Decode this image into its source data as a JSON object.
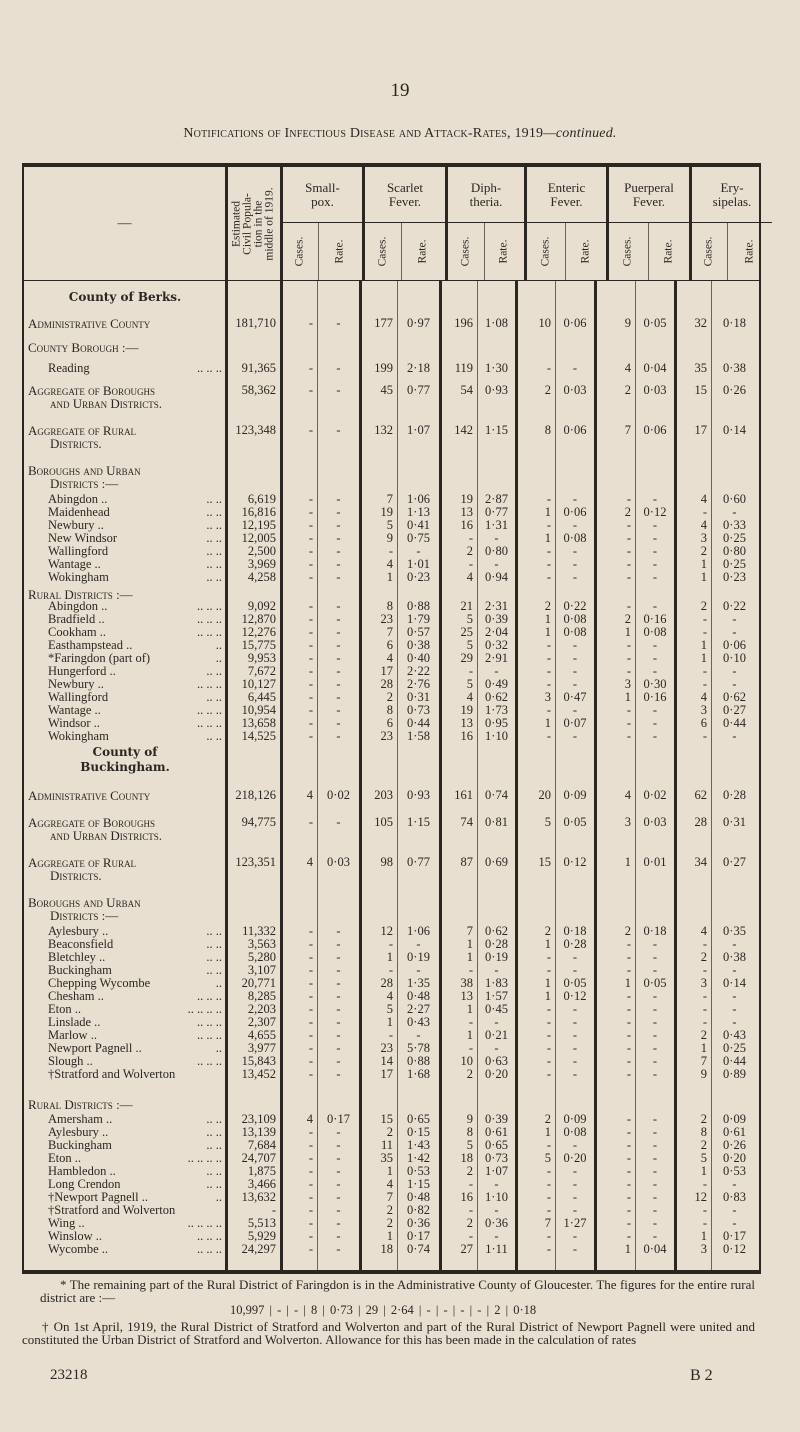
{
  "page_number": "19",
  "title_main": "Notifications of Infectious Disease and Attack-Rates, 1919",
  "title_suffix": "—continued.",
  "header": {
    "name_col": "—",
    "population": [
      "Estimated",
      "Civil Popula-",
      "tion in the",
      "middle of 1919."
    ],
    "diseases": [
      {
        "name": "Small-",
        "name2": "pox."
      },
      {
        "name": "Scarlet",
        "name2": "Fever."
      },
      {
        "name": "Diph-",
        "name2": "theria."
      },
      {
        "name": "Enteric",
        "name2": "Fever."
      },
      {
        "name": "Puerperal",
        "name2": "Fever."
      },
      {
        "name": "Ery-",
        "name2": "sipelas."
      }
    ],
    "cases": "Cases.",
    "rate": "Rate."
  },
  "rows": [
    {
      "type": "county",
      "label": "County of Berks."
    },
    {
      "type": "total",
      "label": "Administrative County",
      "v": [
        "181,710",
        "-",
        "-",
        "177",
        "0·97",
        "196",
        "1·08",
        "10",
        "0·06",
        "9",
        "0·05",
        "32",
        "0·18"
      ]
    },
    {
      "type": "section",
      "label": "County Borough :—"
    },
    {
      "type": "item",
      "label": "Reading",
      "dots": ".. .. ..",
      "v": [
        "91,365",
        "-",
        "-",
        "199",
        "2·18",
        "119",
        "1·30",
        "-",
        "-",
        "4",
        "0·04",
        "35",
        "0·38"
      ]
    },
    {
      "type": "agg",
      "label": "Aggregate of Boroughs",
      "label2": "and Urban Districts.",
      "v": [
        "58,362",
        "-",
        "-",
        "45",
        "0·77",
        "54",
        "0·93",
        "2",
        "0·03",
        "2",
        "0·03",
        "15",
        "0·26"
      ]
    },
    {
      "type": "agg",
      "label": "Aggregate of Rural",
      "label2": "Districts.",
      "v": [
        "123,348",
        "-",
        "-",
        "132",
        "1·07",
        "142",
        "1·15",
        "8",
        "0·06",
        "7",
        "0·06",
        "17",
        "0·14"
      ]
    },
    {
      "type": "section2",
      "label": "Boroughs and Urban",
      "label2": "Districts :—"
    },
    {
      "type": "item",
      "label": "Abingdon ..",
      "dots": ".. ..",
      "v": [
        "6,619",
        "-",
        "-",
        "7",
        "1·06",
        "19",
        "2·87",
        "-",
        "-",
        "-",
        "-",
        "4",
        "0·60"
      ]
    },
    {
      "type": "item",
      "label": "Maidenhead",
      "dots": ".. ..",
      "v": [
        "16,816",
        "-",
        "-",
        "19",
        "1·13",
        "13",
        "0·77",
        "1",
        "0·06",
        "2",
        "0·12",
        "-",
        "-"
      ]
    },
    {
      "type": "item",
      "label": "Newbury ..",
      "dots": ".. ..",
      "v": [
        "12,195",
        "-",
        "-",
        "5",
        "0·41",
        "16",
        "1·31",
        "-",
        "-",
        "-",
        "-",
        "4",
        "0·33"
      ]
    },
    {
      "type": "item",
      "label": "New Windsor",
      "dots": ".. ..",
      "v": [
        "12,005",
        "-",
        "-",
        "9",
        "0·75",
        "-",
        "-",
        "1",
        "0·08",
        "-",
        "-",
        "3",
        "0·25"
      ]
    },
    {
      "type": "item",
      "label": "Wallingford",
      "dots": ".. ..",
      "v": [
        "2,500",
        "-",
        "-",
        "-",
        "-",
        "2",
        "0·80",
        "-",
        "-",
        "-",
        "-",
        "2",
        "0·80"
      ]
    },
    {
      "type": "item",
      "label": "Wantage ..",
      "dots": ".. ..",
      "v": [
        "3,969",
        "-",
        "-",
        "4",
        "1·01",
        "-",
        "-",
        "-",
        "-",
        "-",
        "-",
        "1",
        "0·25"
      ]
    },
    {
      "type": "item",
      "label": "Wokingham",
      "dots": ".. ..",
      "v": [
        "4,258",
        "-",
        "-",
        "1",
        "0·23",
        "4",
        "0·94",
        "-",
        "-",
        "-",
        "-",
        "1",
        "0·23"
      ]
    },
    {
      "type": "section",
      "label": "Rural Districts :—"
    },
    {
      "type": "item",
      "label": "Abingdon ..",
      "dots": ".. .. ..",
      "v": [
        "9,092",
        "-",
        "-",
        "8",
        "0·88",
        "21",
        "2·31",
        "2",
        "0·22",
        "-",
        "-",
        "2",
        "0·22"
      ]
    },
    {
      "type": "item",
      "label": "Bradfield ..",
      "dots": ".. .. ..",
      "v": [
        "12,870",
        "-",
        "-",
        "23",
        "1·79",
        "5",
        "0·39",
        "1",
        "0·08",
        "2",
        "0·16",
        "-",
        "-"
      ]
    },
    {
      "type": "item",
      "label": "Cookham ..",
      "dots": ".. .. ..",
      "v": [
        "12,276",
        "-",
        "-",
        "7",
        "0·57",
        "25",
        "2·04",
        "1",
        "0·08",
        "1",
        "0·08",
        "-",
        "-"
      ]
    },
    {
      "type": "item",
      "label": "Easthampstead ..",
      "dots": "..",
      "v": [
        "15,775",
        "-",
        "-",
        "6",
        "0·38",
        "5",
        "0·32",
        "-",
        "-",
        "-",
        "-",
        "1",
        "0·06"
      ]
    },
    {
      "type": "item",
      "label": "*Faringdon (part of)",
      "dots": "..",
      "v": [
        "9,953",
        "-",
        "-",
        "4",
        "0·40",
        "29",
        "2·91",
        "-",
        "-",
        "-",
        "-",
        "1",
        "0·10"
      ]
    },
    {
      "type": "item",
      "label": "Hungerford ..",
      "dots": ".. ..",
      "v": [
        "7,672",
        "-",
        "-",
        "17",
        "2·22",
        "-",
        "-",
        "-",
        "-",
        "-",
        "-",
        "-",
        "-"
      ]
    },
    {
      "type": "item",
      "label": "Newbury ..",
      "dots": ".. .. ..",
      "v": [
        "10,127",
        "-",
        "-",
        "28",
        "2·76",
        "5",
        "0·49",
        "-",
        "-",
        "3",
        "0·30",
        "-",
        "-"
      ]
    },
    {
      "type": "item",
      "label": "Wallingford",
      "dots": ".. ..",
      "v": [
        "6,445",
        "-",
        "-",
        "2",
        "0·31",
        "4",
        "0·62",
        "3",
        "0·47",
        "1",
        "0·16",
        "4",
        "0·62"
      ]
    },
    {
      "type": "item",
      "label": "Wantage ..",
      "dots": ".. .. ..",
      "v": [
        "10,954",
        "-",
        "-",
        "8",
        "0·73",
        "19",
        "1·73",
        "-",
        "-",
        "-",
        "-",
        "3",
        "0·27"
      ]
    },
    {
      "type": "item",
      "label": "Windsor ..",
      "dots": ".. .. ..",
      "v": [
        "13,658",
        "-",
        "-",
        "6",
        "0·44",
        "13",
        "0·95",
        "1",
        "0·07",
        "-",
        "-",
        "6",
        "0·44"
      ]
    },
    {
      "type": "item",
      "label": "Wokingham",
      "dots": ".. ..",
      "v": [
        "14,525",
        "-",
        "-",
        "23",
        "1·58",
        "16",
        "1·10",
        "-",
        "-",
        "-",
        "-",
        "-",
        "-"
      ]
    },
    {
      "type": "county2",
      "label": "County of",
      "label2": "Buckingham."
    },
    {
      "type": "total",
      "label": "Administrative County",
      "v": [
        "218,126",
        "4",
        "0·02",
        "203",
        "0·93",
        "161",
        "0·74",
        "20",
        "0·09",
        "4",
        "0·02",
        "62",
        "0·28"
      ]
    },
    {
      "type": "agg",
      "label": "Aggregate of Boroughs",
      "label2": "and Urban Districts.",
      "v": [
        "94,775",
        "-",
        "-",
        "105",
        "1·15",
        "74",
        "0·81",
        "5",
        "0·05",
        "3",
        "0·03",
        "28",
        "0·31"
      ]
    },
    {
      "type": "agg",
      "label": "Aggregate of Rural",
      "label2": "Districts.",
      "v": [
        "123,351",
        "4",
        "0·03",
        "98",
        "0·77",
        "87",
        "0·69",
        "15",
        "0·12",
        "1",
        "0·01",
        "34",
        "0·27"
      ]
    },
    {
      "type": "section2",
      "label": "Boroughs and Urban",
      "label2": "Districts :—"
    },
    {
      "type": "item",
      "label": "Aylesbury ..",
      "dots": ".. ..",
      "v": [
        "11,332",
        "-",
        "-",
        "12",
        "1·06",
        "7",
        "0·62",
        "2",
        "0·18",
        "2",
        "0·18",
        "4",
        "0·35"
      ]
    },
    {
      "type": "item",
      "label": "Beaconsfield",
      "dots": ".. ..",
      "v": [
        "3,563",
        "-",
        "-",
        "-",
        "-",
        "1",
        "0·28",
        "1",
        "0·28",
        "-",
        "-",
        "-",
        "-"
      ]
    },
    {
      "type": "item",
      "label": "Bletchley ..",
      "dots": ".. ..",
      "v": [
        "5,280",
        "-",
        "-",
        "1",
        "0·19",
        "1",
        "0·19",
        "-",
        "-",
        "-",
        "-",
        "2",
        "0·38"
      ]
    },
    {
      "type": "item",
      "label": "Buckingham",
      "dots": ".. ..",
      "v": [
        "3,107",
        "-",
        "-",
        "-",
        "-",
        "-",
        "-",
        "-",
        "-",
        "-",
        "-",
        "-",
        "-"
      ]
    },
    {
      "type": "item",
      "label": "Chepping Wycombe",
      "dots": "..",
      "v": [
        "20,771",
        "-",
        "-",
        "28",
        "1·35",
        "38",
        "1·83",
        "1",
        "0·05",
        "1",
        "0·05",
        "3",
        "0·14"
      ]
    },
    {
      "type": "item",
      "label": "Chesham ..",
      "dots": ".. .. ..",
      "v": [
        "8,285",
        "-",
        "-",
        "4",
        "0·48",
        "13",
        "1·57",
        "1",
        "0·12",
        "-",
        "-",
        "-",
        "-"
      ]
    },
    {
      "type": "item",
      "label": "Eton ..",
      "dots": ".. .. .. ..",
      "v": [
        "2,203",
        "-",
        "-",
        "5",
        "2·27",
        "1",
        "0·45",
        "-",
        "-",
        "-",
        "-",
        "-",
        "-"
      ]
    },
    {
      "type": "item",
      "label": "Linslade ..",
      "dots": ".. .. ..",
      "v": [
        "2,307",
        "-",
        "-",
        "1",
        "0·43",
        "-",
        "-",
        "-",
        "-",
        "-",
        "-",
        "-",
        "-"
      ]
    },
    {
      "type": "item",
      "label": "Marlow ..",
      "dots": ".. .. ..",
      "v": [
        "4,655",
        "-",
        "-",
        "-",
        "-",
        "1",
        "0·21",
        "-",
        "-",
        "-",
        "-",
        "2",
        "0·43"
      ]
    },
    {
      "type": "item",
      "label": "Newport Pagnell ..",
      "dots": "..",
      "v": [
        "3,977",
        "-",
        "-",
        "23",
        "5·78",
        "-",
        "-",
        "-",
        "-",
        "-",
        "-",
        "1",
        "0·25"
      ]
    },
    {
      "type": "item",
      "label": "Slough ..",
      "dots": ".. .. ..",
      "v": [
        "15,843",
        "-",
        "-",
        "14",
        "0·88",
        "10",
        "0·63",
        "-",
        "-",
        "-",
        "-",
        "7",
        "0·44"
      ]
    },
    {
      "type": "item",
      "label": "†Stratford and Wolverton",
      "dots": "",
      "v": [
        "13,452",
        "-",
        "-",
        "17",
        "1·68",
        "2",
        "0·20",
        "-",
        "-",
        "-",
        "-",
        "9",
        "0·89"
      ]
    },
    {
      "type": "section",
      "label": "Rural Districts :—"
    },
    {
      "type": "item",
      "label": "Amersham ..",
      "dots": ".. ..",
      "v": [
        "23,109",
        "4",
        "0·17",
        "15",
        "0·65",
        "9",
        "0·39",
        "2",
        "0·09",
        "-",
        "-",
        "2",
        "0·09"
      ]
    },
    {
      "type": "item",
      "label": "Aylesbury ..",
      "dots": ".. ..",
      "v": [
        "13,139",
        "-",
        "-",
        "2",
        "0·15",
        "8",
        "0·61",
        "1",
        "0·08",
        "-",
        "-",
        "8",
        "0·61"
      ]
    },
    {
      "type": "item",
      "label": "Buckingham",
      "dots": ".. ..",
      "v": [
        "7,684",
        "-",
        "-",
        "11",
        "1·43",
        "5",
        "0·65",
        "-",
        "-",
        "-",
        "-",
        "2",
        "0·26"
      ]
    },
    {
      "type": "item",
      "label": "Eton ..",
      "dots": ".. .. .. ..",
      "v": [
        "24,707",
        "-",
        "-",
        "35",
        "1·42",
        "18",
        "0·73",
        "5",
        "0·20",
        "-",
        "-",
        "5",
        "0·20"
      ]
    },
    {
      "type": "item",
      "label": "Hambledon ..",
      "dots": ".. ..",
      "v": [
        "1,875",
        "-",
        "-",
        "1",
        "0·53",
        "2",
        "1·07",
        "-",
        "-",
        "-",
        "-",
        "1",
        "0·53"
      ]
    },
    {
      "type": "item",
      "label": "Long Crendon",
      "dots": ".. ..",
      "v": [
        "3,466",
        "-",
        "-",
        "4",
        "1·15",
        "-",
        "-",
        "-",
        "-",
        "-",
        "-",
        "-",
        "-"
      ]
    },
    {
      "type": "item",
      "label": "†Newport Pagnell ..",
      "dots": "..",
      "v": [
        "13,632",
        "-",
        "-",
        "7",
        "0·48",
        "16",
        "1·10",
        "-",
        "-",
        "-",
        "-",
        "12",
        "0·83"
      ]
    },
    {
      "type": "item",
      "label": "†Stratford and Wolverton",
      "dots": "",
      "v": [
        "-",
        "-",
        "-",
        "2",
        "0·82",
        "-",
        "-",
        "-",
        "-",
        "-",
        "-",
        "-",
        "-"
      ]
    },
    {
      "type": "item",
      "label": "Wing ..",
      "dots": ".. .. .. ..",
      "v": [
        "5,513",
        "-",
        "-",
        "2",
        "0·36",
        "2",
        "0·36",
        "7",
        "1·27",
        "-",
        "-",
        "-",
        "-"
      ]
    },
    {
      "type": "item",
      "label": "Winslow ..",
      "dots": ".. .. ..",
      "v": [
        "5,929",
        "-",
        "-",
        "1",
        "0·17",
        "-",
        "-",
        "-",
        "-",
        "-",
        "-",
        "1",
        "0·17"
      ]
    },
    {
      "type": "item",
      "label": "Wycombe ..",
      "dots": ".. .. ..",
      "v": [
        "24,297",
        "-",
        "-",
        "18",
        "0·74",
        "27",
        "1·11",
        "-",
        "-",
        "1",
        "0·04",
        "3",
        "0·12"
      ]
    }
  ],
  "footnotes": {
    "star": "* The remaining part of the Rural District of Faringdon is in the Administrative County of Gloucester. The figures for the entire rural district are :—",
    "star_figures": "10,997 | - | - | 8 | 0·73 | 29 | 2·64 | - | - | - | - | 2 | 0·18",
    "dagger": "† On 1st April, 1919, the Rural District of Stratford and Wolverton and part of the Rural District of Newport Pagnell were united and constituted the Urban District of Stratford and Wolverton. Allowance for this has been made in the calculation of rates",
    "print_code": "23218",
    "signature": "B 2"
  }
}
